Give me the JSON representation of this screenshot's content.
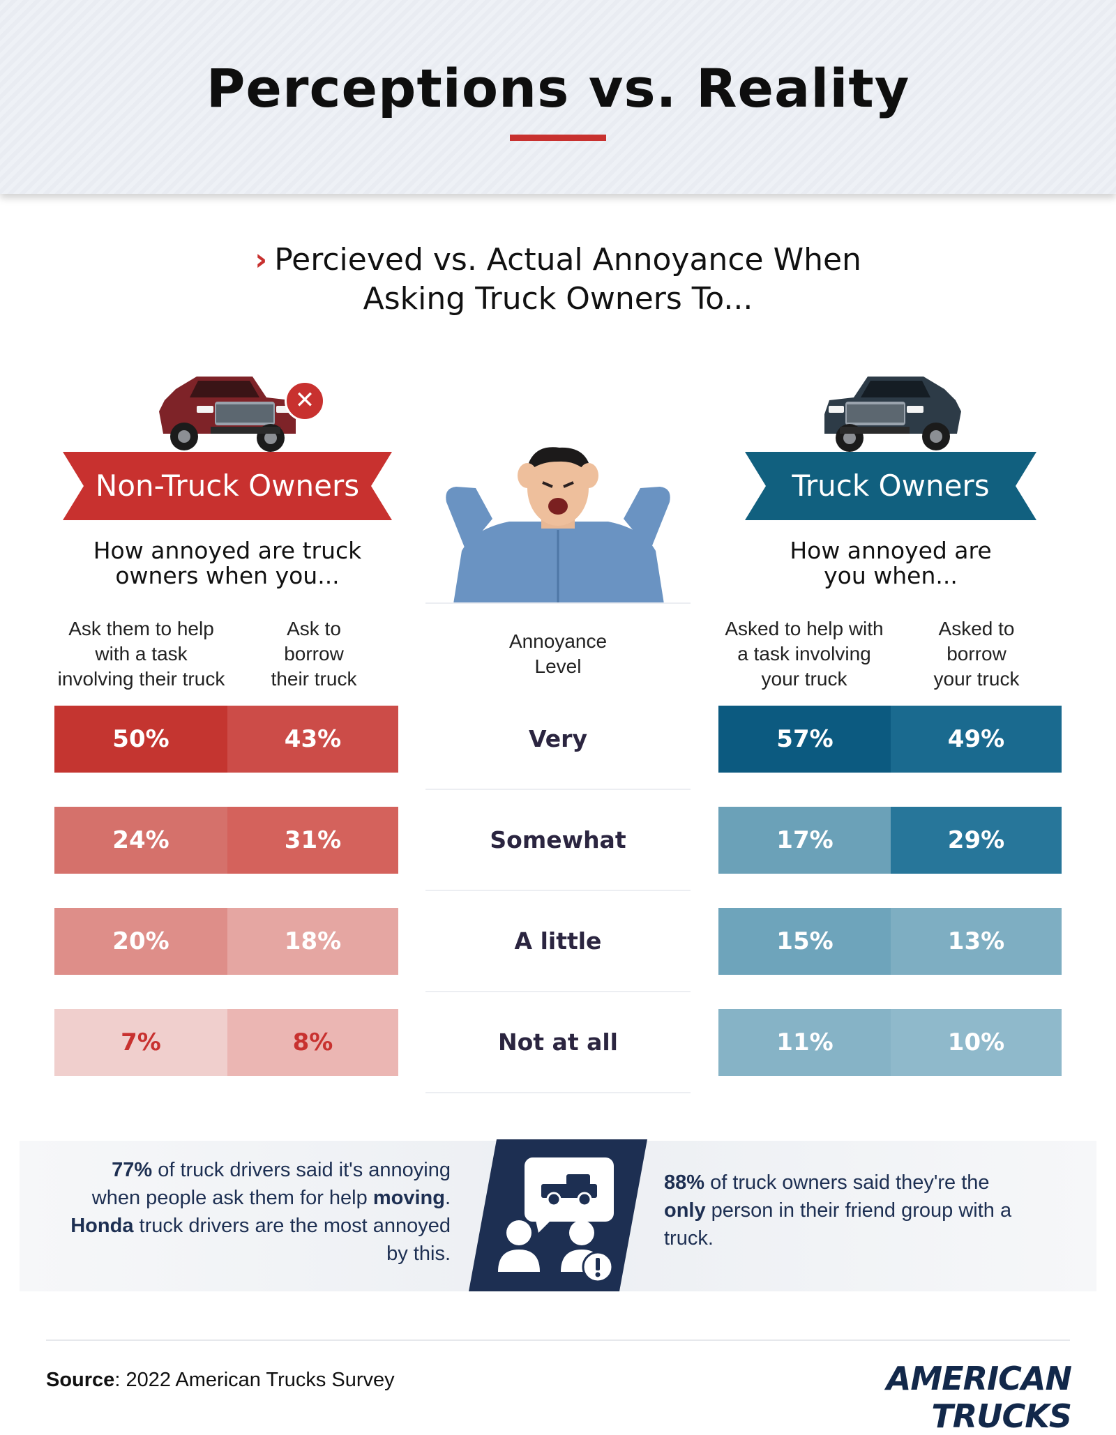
{
  "title": "Perceptions vs. Reality",
  "subtitle_line1": "Percieved vs. Actual Annoyance When",
  "subtitle_line2": "Asking Truck Owners To...",
  "left": {
    "banner": "Non-Truck Owners",
    "question_line1": "How annoyed are truck",
    "question_line2": "owners when you...",
    "col1": [
      "Ask them to help",
      "with a task",
      "involving their truck"
    ],
    "col2": [
      "Ask to",
      "borrow",
      "their truck"
    ]
  },
  "center": {
    "header": [
      "Annoyance",
      "Level"
    ]
  },
  "right": {
    "banner": "Truck Owners",
    "question_line1": "How annoyed are",
    "question_line2": "you when...",
    "col1": [
      "Asked to help with",
      "a task involving",
      "your truck"
    ],
    "col2": [
      "Asked to",
      "borrow",
      "your truck"
    ]
  },
  "chart_data": {
    "type": "table",
    "levels": [
      "Very",
      "Somewhat",
      "A little",
      "Not at all"
    ],
    "series": [
      {
        "name": "Ask them to help with a task involving their truck",
        "values": [
          50,
          24,
          20,
          7
        ]
      },
      {
        "name": "Ask to borrow their truck",
        "values": [
          43,
          31,
          18,
          8
        ]
      },
      {
        "name": "Asked to help with a task involving your truck",
        "values": [
          57,
          17,
          15,
          11
        ]
      },
      {
        "name": "Asked to borrow your truck",
        "values": [
          49,
          29,
          13,
          10
        ]
      }
    ],
    "unit": "%"
  },
  "colors": {
    "left": [
      "#c43530",
      "#cc4c48",
      "#d5716b",
      "#d4625c",
      "#de8e89",
      "#e5a6a2",
      "#f0cfcd",
      "#ebb6b3"
    ],
    "left_text": [
      "#ffffff",
      "#ffffff",
      "#ffffff",
      "#ffffff",
      "#ffffff",
      "#ffffff",
      "#c8312f",
      "#c8312f"
    ],
    "right": [
      "#0c5a80",
      "#1a6a8f",
      "#6ba1b8",
      "#27769a",
      "#6ea4bb",
      "#7eaec2",
      "#86b3c6",
      "#8fb9cb"
    ],
    "accent_red": "#c8312f",
    "accent_blue": "#11607f",
    "navy": "#1d2f52"
  },
  "notes": {
    "left_stat": "77%",
    "left_a": " of truck drivers said it's annoying when people ask them for help ",
    "left_b": "moving",
    "left_c": ". ",
    "left_d": "Honda",
    "left_e": " truck drivers are the most annoyed by this.",
    "right_stat": "88%",
    "right_a": " of truck owners said they're the ",
    "right_b": "only",
    "right_c": " person in their friend group with a truck."
  },
  "footer": {
    "source_label": "Source",
    "source_text": ": 2022 American Trucks Survey",
    "brand": "AMERICAN TRUCKS"
  },
  "icons": [
    "close-icon",
    "red-truck-icon",
    "blue-truck-icon",
    "annoyed-man-image",
    "people-truck-icon",
    "alert-icon"
  ]
}
